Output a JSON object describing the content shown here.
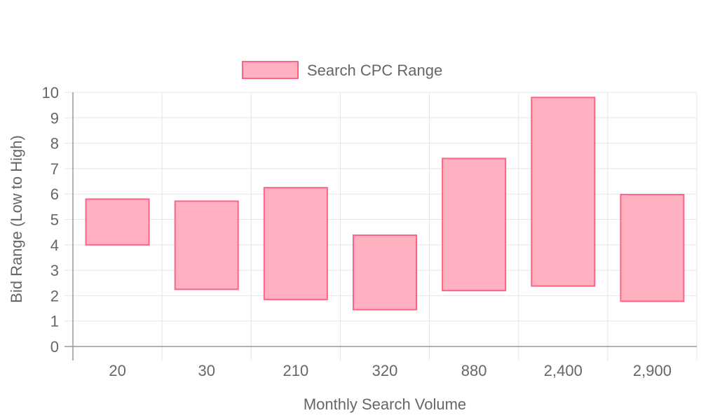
{
  "chart_data": {
    "type": "bar",
    "subtype": "floating-range",
    "legend": {
      "position": "top",
      "label": "Search CPC Range"
    },
    "xlabel": "Monthly Search Volume",
    "ylabel": "Bid Range (Low to High)",
    "ylim": [
      0,
      10
    ],
    "yticks": [
      "0",
      "1",
      "2",
      "3",
      "4",
      "5",
      "6",
      "7",
      "8",
      "9",
      "10"
    ],
    "grid": true,
    "categories": [
      "20",
      "30",
      "210",
      "320",
      "880",
      "2,400",
      "2,900"
    ],
    "series": [
      {
        "name": "Search CPC Range",
        "ranges": [
          [
            4.0,
            5.8
          ],
          [
            2.25,
            5.72
          ],
          [
            1.85,
            6.25
          ],
          [
            1.45,
            4.38
          ],
          [
            2.2,
            7.4
          ],
          [
            2.38,
            9.8
          ],
          [
            1.78,
            5.98
          ]
        ]
      }
    ],
    "colors": {
      "fill": "#ffb1c1",
      "stroke": "#ff6384",
      "grid": "#e5e5e5",
      "axis": "#999999",
      "text": "#666666"
    }
  }
}
